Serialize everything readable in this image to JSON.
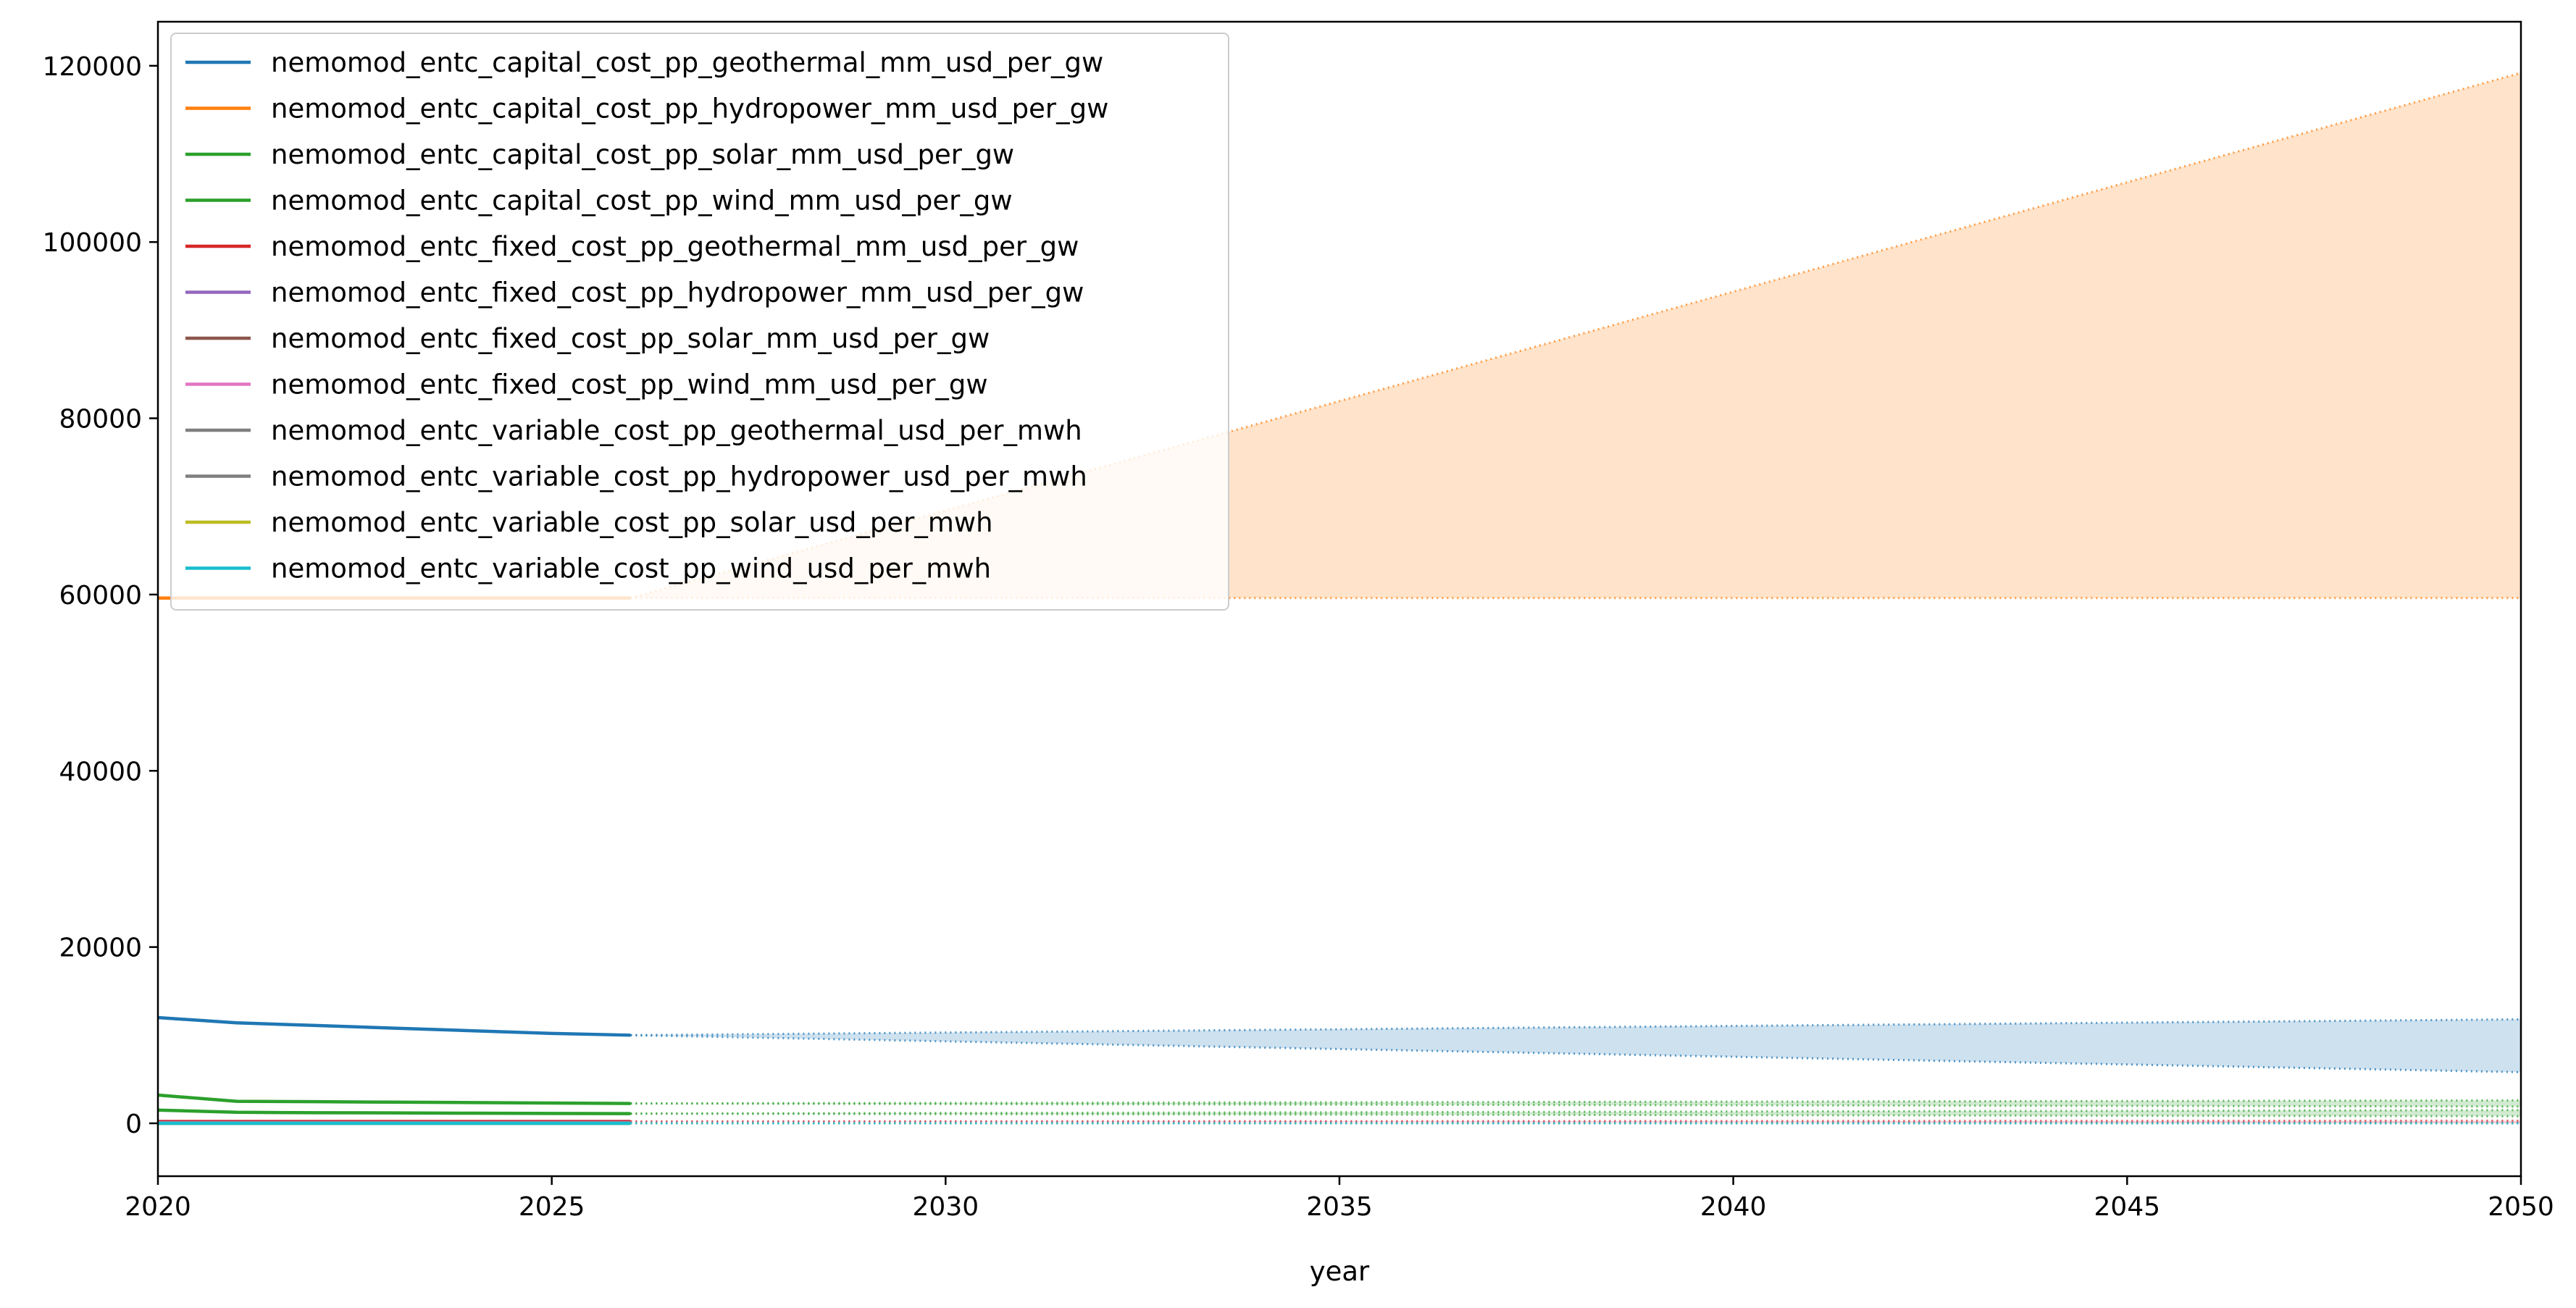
{
  "chart_data": {
    "type": "line",
    "title": "",
    "xlabel": "year",
    "ylabel": "",
    "xlim": [
      2020,
      2050
    ],
    "ylim": [
      -6000,
      125000
    ],
    "x_ticks": [
      2020,
      2025,
      2030,
      2035,
      2040,
      2045,
      2050
    ],
    "y_ticks": [
      0,
      20000,
      40000,
      60000,
      80000,
      100000,
      120000
    ],
    "grid": false,
    "legend_position": "upper-left",
    "history": {
      "x_start": 2020,
      "x_end": 2026
    },
    "projection": {
      "x_start": 2026,
      "x_end": 2050
    },
    "series": [
      {
        "name": "nemomod_entc_capital_cost_pp_geothermal_mm_usd_per_gw",
        "color": "#1f77b4",
        "x": [
          2020,
          2021,
          2022,
          2023,
          2024,
          2025,
          2026
        ],
        "values": [
          12000,
          11400,
          11100,
          10800,
          10500,
          10200,
          10000
        ],
        "band": {
          "upper_end": 11800,
          "lower_end": 5800
        }
      },
      {
        "name": "nemomod_entc_capital_cost_pp_hydropower_mm_usd_per_gw",
        "color": "#ff7f0e",
        "x": [
          2020,
          2021,
          2022,
          2023,
          2024,
          2025,
          2026
        ],
        "values": [
          59600,
          59600,
          59600,
          59600,
          59600,
          59600,
          59600
        ],
        "band": {
          "upper_end": 119200,
          "lower_end": 59600
        }
      },
      {
        "name": "nemomod_entc_capital_cost_pp_solar_mm_usd_per_gw",
        "color": "#2ca02c",
        "x": [
          2020,
          2021,
          2022,
          2023,
          2024,
          2025,
          2026
        ],
        "values": [
          3200,
          2500,
          2450,
          2400,
          2350,
          2300,
          2250
        ],
        "band": {
          "upper_end": 2600,
          "lower_end": 1900
        }
      },
      {
        "name": "nemomod_entc_capital_cost_pp_wind_mm_usd_per_gw",
        "color": "#2ca02c",
        "x": [
          2020,
          2021,
          2022,
          2023,
          2024,
          2025,
          2026
        ],
        "values": [
          1500,
          1250,
          1200,
          1180,
          1150,
          1120,
          1100
        ],
        "band": {
          "upper_end": 1500,
          "lower_end": 800
        }
      },
      {
        "name": "nemomod_entc_fixed_cost_pp_geothermal_mm_usd_per_gw",
        "color": "#d62728",
        "x": [
          2020,
          2021,
          2022,
          2023,
          2024,
          2025,
          2026
        ],
        "values": [
          200,
          200,
          200,
          200,
          200,
          200,
          200
        ],
        "band": {
          "upper_end": 300,
          "lower_end": 100
        }
      },
      {
        "name": "nemomod_entc_fixed_cost_pp_hydropower_mm_usd_per_gw",
        "color": "#9467bd",
        "x": [
          2020,
          2021,
          2022,
          2023,
          2024,
          2025,
          2026
        ],
        "values": [
          80,
          80,
          80,
          80,
          80,
          80,
          80
        ],
        "band": {
          "upper_end": 120,
          "lower_end": 40
        }
      },
      {
        "name": "nemomod_entc_fixed_cost_pp_solar_mm_usd_per_gw",
        "color": "#8c564b",
        "x": [
          2020,
          2021,
          2022,
          2023,
          2024,
          2025,
          2026
        ],
        "values": [
          30,
          30,
          30,
          30,
          30,
          30,
          30
        ],
        "band": {
          "upper_end": 50,
          "lower_end": 10
        }
      },
      {
        "name": "nemomod_entc_fixed_cost_pp_wind_mm_usd_per_gw",
        "color": "#e377c2",
        "x": [
          2020,
          2021,
          2022,
          2023,
          2024,
          2025,
          2026
        ],
        "values": [
          40,
          40,
          40,
          40,
          40,
          40,
          40
        ],
        "band": {
          "upper_end": 60,
          "lower_end": 20
        }
      },
      {
        "name": "nemomod_entc_variable_cost_pp_geothermal_usd_per_mwh",
        "color": "#7f7f7f",
        "x": [
          2020,
          2021,
          2022,
          2023,
          2024,
          2025,
          2026
        ],
        "values": [
          5,
          5,
          5,
          5,
          5,
          5,
          5
        ],
        "band": {
          "upper_end": 10,
          "lower_end": 2
        }
      },
      {
        "name": "nemomod_entc_variable_cost_pp_hydropower_usd_per_mwh",
        "color": "#7f7f7f",
        "x": [
          2020,
          2021,
          2022,
          2023,
          2024,
          2025,
          2026
        ],
        "values": [
          4,
          4,
          4,
          4,
          4,
          4,
          4
        ],
        "band": {
          "upper_end": 8,
          "lower_end": 2
        }
      },
      {
        "name": "nemomod_entc_variable_cost_pp_solar_usd_per_mwh",
        "color": "#bcbd22",
        "x": [
          2020,
          2021,
          2022,
          2023,
          2024,
          2025,
          2026
        ],
        "values": [
          0,
          0,
          0,
          0,
          0,
          0,
          0
        ],
        "band": {
          "upper_end": 2,
          "lower_end": 0
        }
      },
      {
        "name": "nemomod_entc_variable_cost_pp_wind_usd_per_mwh",
        "color": "#17becf",
        "x": [
          2020,
          2021,
          2022,
          2023,
          2024,
          2025,
          2026
        ],
        "values": [
          0,
          0,
          0,
          0,
          0,
          0,
          0
        ],
        "band": {
          "upper_end": 2,
          "lower_end": 0
        }
      }
    ]
  }
}
